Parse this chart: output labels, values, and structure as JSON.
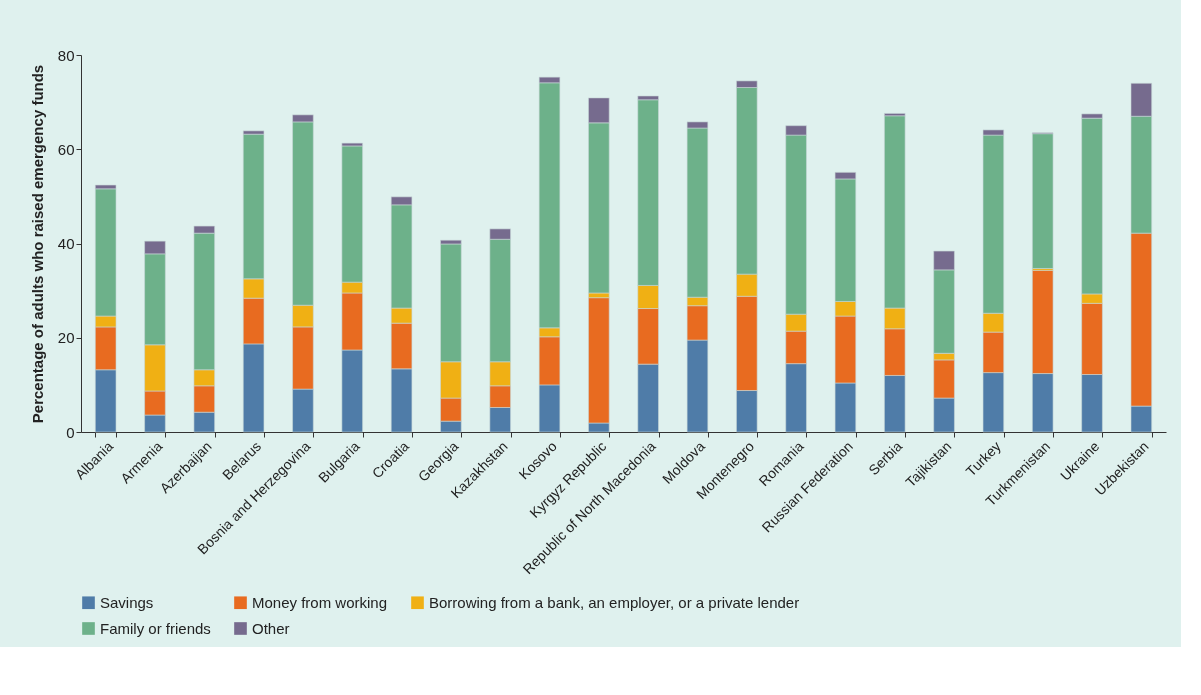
{
  "chart_data": {
    "type": "bar",
    "stacked": true,
    "ylabel": "Percentage of adults who raised emergency funds",
    "categories": [
      "Albania",
      "Armenia",
      "Azerbaijan",
      "Belarus",
      "Bosnia and Herzegovina",
      "Bulgaria",
      "Croatia",
      "Georgia",
      "Kazakhstan",
      "Kosovo",
      "Kyrgyz Republic",
      "Republic of North Macedonia",
      "Moldova",
      "Montenegro",
      "Romania",
      "Russian Federation",
      "Serbia",
      "Tajikistan",
      "Turkey",
      "Turkmenistan",
      "Ukraine",
      "Uzbekistan"
    ],
    "series": [
      {
        "name": "Savings",
        "color": "#4f7ca8",
        "values": [
          13.2,
          3.6,
          4.2,
          18.7,
          9.1,
          17.4,
          13.4,
          2.3,
          5.2,
          10.0,
          1.9,
          14.4,
          19.5,
          8.8,
          14.5,
          10.4,
          12.0,
          7.2,
          12.6,
          12.4,
          12.2,
          5.5
        ]
      },
      {
        "name": "Money from working",
        "color": "#e86b20",
        "values": [
          9.1,
          5.1,
          5.6,
          9.7,
          13.2,
          12.1,
          9.7,
          4.9,
          4.6,
          10.2,
          26.6,
          11.8,
          7.3,
          20.0,
          6.9,
          14.2,
          9.9,
          8.1,
          8.6,
          21.9,
          15.1,
          36.7
        ]
      },
      {
        "name": "Borrowing from a bank, an employer, or a private lender",
        "color": "#f0b014",
        "values": [
          2.3,
          9.8,
          3.4,
          4.1,
          4.6,
          2.3,
          3.2,
          7.7,
          5.1,
          1.9,
          1.0,
          4.9,
          1.8,
          4.7,
          3.6,
          3.1,
          4.4,
          1.4,
          4.0,
          0.4,
          2.0,
          null
        ]
      },
      {
        "name": "Family or friends",
        "color": "#6db18a",
        "values": [
          27.0,
          19.3,
          29.0,
          30.7,
          38.9,
          28.9,
          21.9,
          25.0,
          26.0,
          52.0,
          36.1,
          39.4,
          35.9,
          39.6,
          38.0,
          26.0,
          40.8,
          17.7,
          37.8,
          28.6,
          37.3,
          24.8
        ]
      },
      {
        "name": "Other",
        "color": "#766b8e",
        "values": [
          0.8,
          2.7,
          1.5,
          0.7,
          1.5,
          0.6,
          1.7,
          0.8,
          2.2,
          1.2,
          5.3,
          0.8,
          1.3,
          1.4,
          2.0,
          1.4,
          0.5,
          4.0,
          1.1,
          0.2,
          0.9,
          7.0
        ]
      }
    ],
    "ylim": [
      0,
      80
    ],
    "yticks": [
      0,
      20,
      40,
      60,
      80
    ],
    "grid": false,
    "legend": "bottom"
  }
}
